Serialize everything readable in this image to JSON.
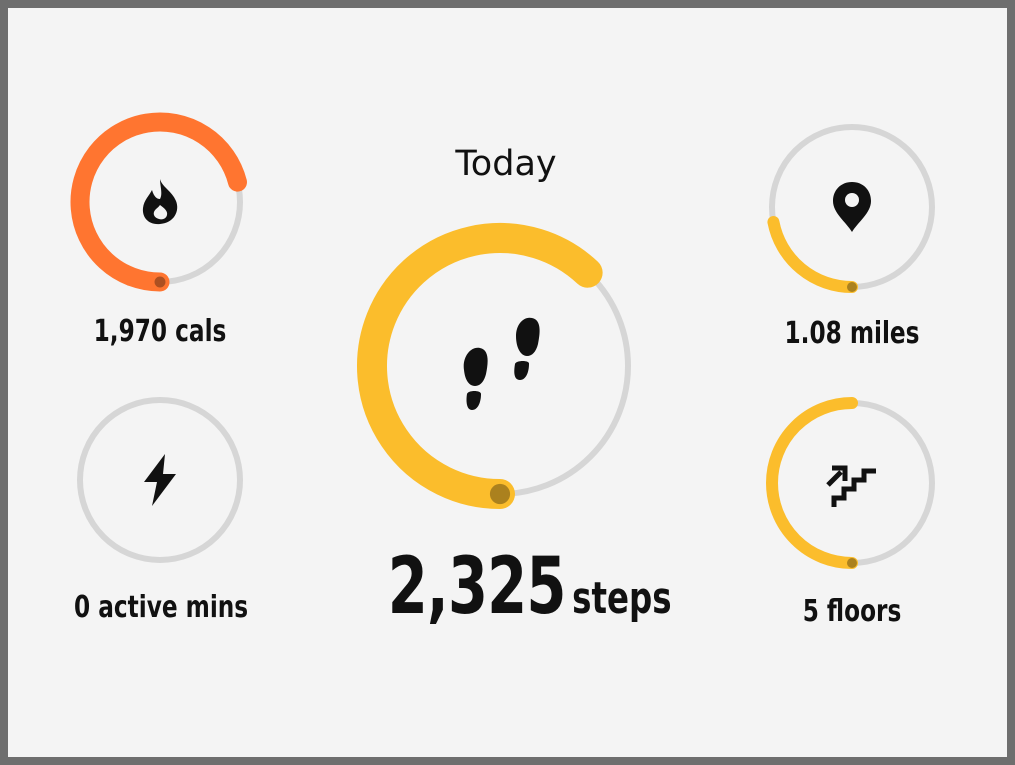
{
  "header": {
    "title": "Today"
  },
  "steps": {
    "value": "2,325",
    "unit": "steps",
    "icon": "footprints-icon",
    "progress": 0.62,
    "color": "#fbbd2c"
  },
  "metrics": [
    {
      "id": "calories",
      "label": "1,970 cals",
      "icon": "flame-icon",
      "progress": 0.71,
      "color": "#ff7530"
    },
    {
      "id": "active-minutes",
      "label": "0 active mins",
      "icon": "lightning-icon",
      "progress": 0,
      "color": "#fbbd2c"
    },
    {
      "id": "distance",
      "label": "1.08 miles",
      "icon": "location-pin-icon",
      "progress": 0.22,
      "color": "#fbbd2c"
    },
    {
      "id": "floors",
      "label": "5 floors",
      "icon": "stairs-icon",
      "progress": 0.5,
      "color": "#fbbd2c"
    }
  ],
  "colors": {
    "background": "#f4f4f4",
    "frame": "#6e6e6e",
    "track": "#d6d6d6",
    "text": "#111111"
  }
}
